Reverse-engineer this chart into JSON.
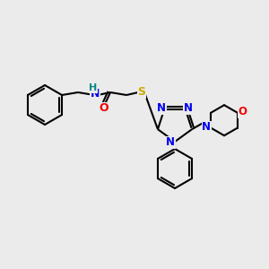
{
  "background_color": "#ebebeb",
  "bond_color": "#000000",
  "atom_colors": {
    "N": "#0000ee",
    "O": "#ee0000",
    "S": "#ccaa00",
    "H": "#008888",
    "C": "#000000"
  },
  "figsize": [
    3.0,
    3.0
  ],
  "dpi": 100,
  "lw": 1.5,
  "font_size": 9
}
